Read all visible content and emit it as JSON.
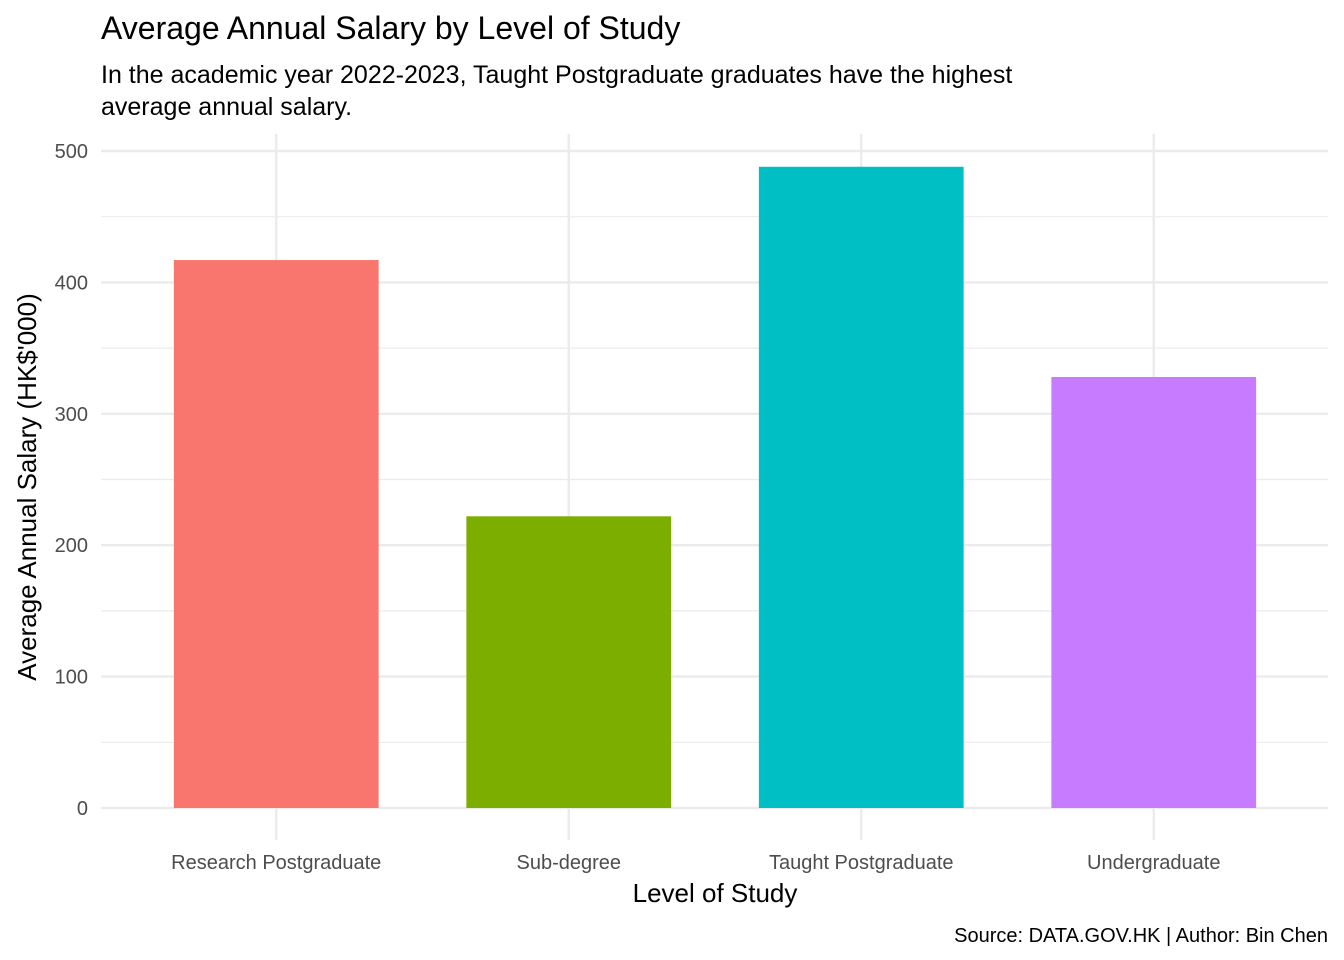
{
  "chart_data": {
    "type": "bar",
    "title": "Average Annual Salary by Level of Study",
    "subtitle": [
      "In the academic year 2022-2023, Taught Postgraduate graduates have the highest",
      "average annual salary."
    ],
    "xlabel": "Level of Study",
    "ylabel": "Average Annual Salary (HK$'000)",
    "caption": "Source: DATA.GOV.HK | Author: Bin Chen",
    "categories": [
      "Research Postgraduate",
      "Sub-degree",
      "Taught Postgraduate",
      "Undergraduate"
    ],
    "values": [
      417,
      222,
      488,
      328
    ],
    "colors": [
      "#F8766D",
      "#7CAE00",
      "#00BFC4",
      "#C77CFF"
    ],
    "ylim": [
      0,
      500
    ],
    "yticks": [
      0,
      100,
      200,
      300,
      400,
      500
    ],
    "grid": true,
    "legend": "none"
  }
}
